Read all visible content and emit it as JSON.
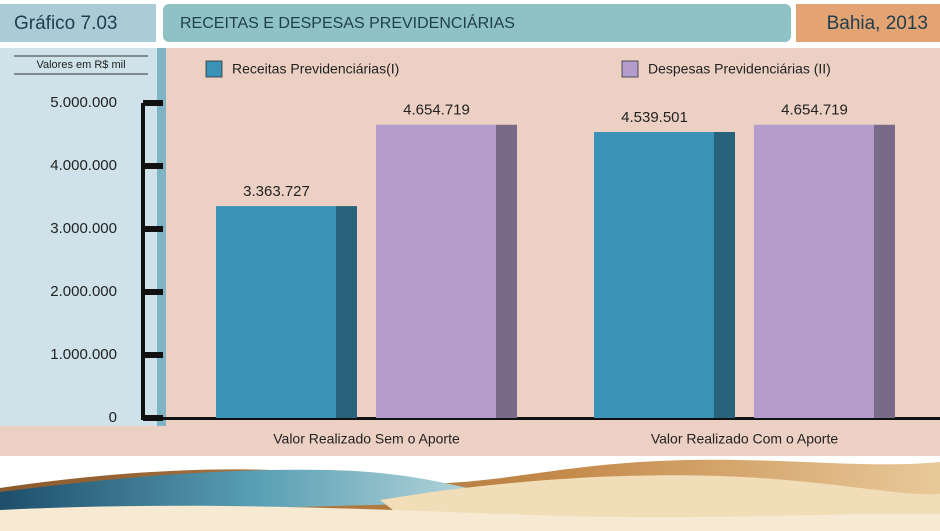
{
  "chart_data": {
    "type": "bar",
    "label": "Gráfico 7.03",
    "title": "RECEITAS E DESPESAS PREVIDENCIÁRIAS",
    "subtitle": "Bahia, 2013",
    "y_axis_label": "Valores em R$ mil",
    "categories": [
      "Valor Realizado Sem o Aporte",
      "Valor Realizado Com o Aporte"
    ],
    "series": [
      {
        "name": "Receitas Previdenciárias(I)",
        "color": "#3a93b6",
        "values": [
          3363727,
          4539501
        ],
        "value_labels": [
          "3.363.727",
          "4.539.501"
        ]
      },
      {
        "name": "Despesas Previdenciárias (II)",
        "color": "#b39ccb",
        "values": [
          4654719,
          4654719
        ],
        "value_labels": [
          "4.654.719",
          "4.654.719"
        ]
      }
    ],
    "ylim": [
      0,
      5000000
    ],
    "yticks": [
      0,
      {
        "value": 1000000,
        "label": "1.000.000"
      },
      {
        "value": 2000000,
        "label": "2.000.000"
      },
      {
        "value": 3000000,
        "label": "3.000.000"
      },
      {
        "value": 4000000,
        "label": "4.000.000"
      },
      {
        "value": 5000000,
        "label": "5.000.000"
      }
    ]
  }
}
